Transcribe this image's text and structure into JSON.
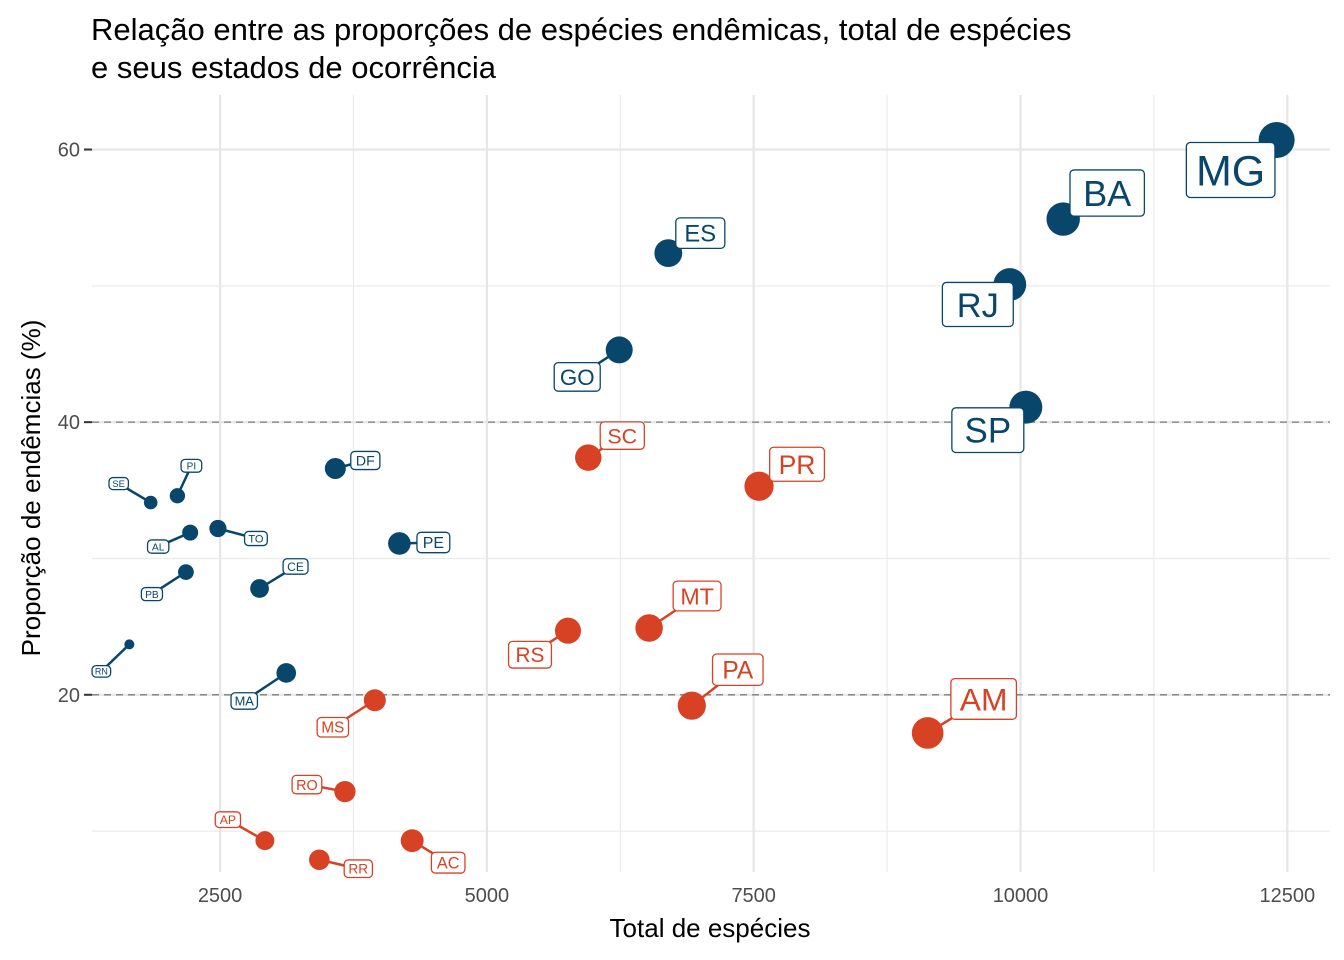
{
  "title_lines": [
    "Relação entre as proporções de espécies endêmicas, total de espécies",
    "e seus estados de ocorrência"
  ],
  "chart_data": {
    "type": "scatter",
    "xlabel": "Total de espécies",
    "ylabel": "Proporção de endêmcias (%)",
    "xlim": [
      1300,
      12900
    ],
    "ylim": [
      7,
      64
    ],
    "x_ticks": [
      2500,
      5000,
      7500,
      10000,
      12500
    ],
    "y_ticks": [
      20,
      40,
      60
    ],
    "grid": true,
    "reference_lines_y": [
      20,
      40
    ],
    "colors": {
      "above_20": "#08476b",
      "below_20": "#d84224"
    },
    "points": [
      {
        "label": "MG",
        "x": 12400,
        "y": 60.7,
        "group": "above_20"
      },
      {
        "label": "BA",
        "x": 10400,
        "y": 54.9,
        "group": "above_20"
      },
      {
        "label": "ES",
        "x": 6700,
        "y": 52.4,
        "group": "above_20"
      },
      {
        "label": "RJ",
        "x": 9900,
        "y": 50.1,
        "group": "above_20"
      },
      {
        "label": "GO",
        "x": 6240,
        "y": 45.3,
        "group": "above_20"
      },
      {
        "label": "SP",
        "x": 10050,
        "y": 41.1,
        "group": "above_20"
      },
      {
        "label": "SC",
        "x": 5950,
        "y": 37.4,
        "group": "below_20"
      },
      {
        "label": "DF",
        "x": 3580,
        "y": 36.6,
        "group": "above_20"
      },
      {
        "label": "PR",
        "x": 7550,
        "y": 35.3,
        "group": "below_20"
      },
      {
        "label": "PI",
        "x": 2100,
        "y": 34.6,
        "group": "above_20"
      },
      {
        "label": "SE",
        "x": 1850,
        "y": 34.1,
        "group": "above_20"
      },
      {
        "label": "TO",
        "x": 2480,
        "y": 32.2,
        "group": "above_20"
      },
      {
        "label": "AL",
        "x": 2220,
        "y": 31.9,
        "group": "above_20"
      },
      {
        "label": "PE",
        "x": 4180,
        "y": 31.1,
        "group": "above_20"
      },
      {
        "label": "PB",
        "x": 2180,
        "y": 29.0,
        "group": "above_20"
      },
      {
        "label": "CE",
        "x": 2870,
        "y": 27.8,
        "group": "above_20"
      },
      {
        "label": "MT",
        "x": 6520,
        "y": 24.9,
        "group": "below_20"
      },
      {
        "label": "RS",
        "x": 5760,
        "y": 24.7,
        "group": "below_20"
      },
      {
        "label": "RN",
        "x": 1650,
        "y": 23.7,
        "group": "above_20"
      },
      {
        "label": "MA",
        "x": 3120,
        "y": 21.6,
        "group": "above_20"
      },
      {
        "label": "MS",
        "x": 3950,
        "y": 19.6,
        "group": "below_20"
      },
      {
        "label": "PA",
        "x": 6920,
        "y": 19.2,
        "group": "below_20"
      },
      {
        "label": "AM",
        "x": 9130,
        "y": 17.2,
        "group": "below_20"
      },
      {
        "label": "RO",
        "x": 3670,
        "y": 12.9,
        "group": "below_20"
      },
      {
        "label": "AP",
        "x": 2920,
        "y": 9.3,
        "group": "below_20"
      },
      {
        "label": "AC",
        "x": 4300,
        "y": 9.3,
        "group": "below_20"
      },
      {
        "label": "RR",
        "x": 3430,
        "y": 7.9,
        "group": "below_20"
      }
    ]
  }
}
